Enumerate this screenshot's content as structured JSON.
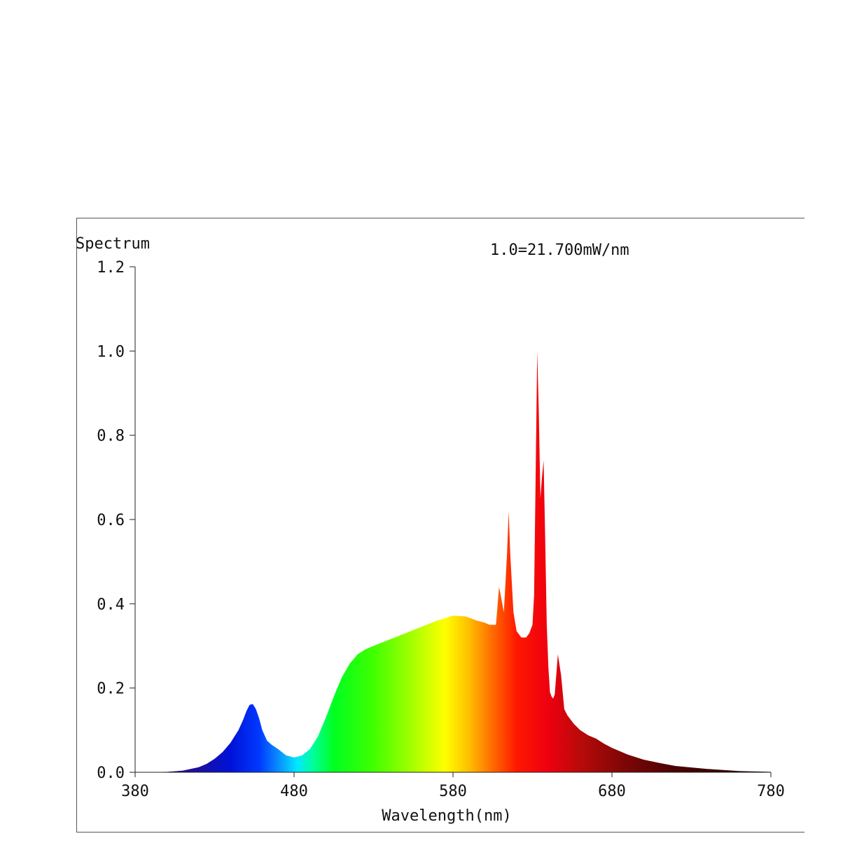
{
  "chart_data": {
    "type": "area",
    "title": "Spectrum",
    "annotation": "1.0=21.700mW/nm",
    "xlabel": "Wavelength(nm)",
    "ylabel": "",
    "xlim": [
      380,
      780
    ],
    "ylim": [
      0,
      1.2
    ],
    "x_ticks": [
      "380",
      "480",
      "580",
      "680",
      "780"
    ],
    "y_ticks": [
      "0.0",
      "0.2",
      "0.4",
      "0.6",
      "0.8",
      "1.0",
      "1.2"
    ],
    "x_tick_values": [
      380,
      480,
      580,
      680,
      780
    ],
    "y_tick_values": [
      0,
      0.2,
      0.4,
      0.6,
      0.8,
      1.0,
      1.2
    ],
    "fill": "visible-spectrum-gradient",
    "series": [
      {
        "x": [
          380,
          400,
          410,
          420,
          425,
          430,
          435,
          440,
          445,
          448,
          450,
          452,
          454,
          456,
          458,
          460,
          463,
          466,
          470,
          475,
          480,
          485,
          490,
          495,
          500,
          505,
          510,
          515,
          520,
          525,
          530,
          540,
          550,
          560,
          570,
          580,
          588,
          595,
          600,
          603,
          607,
          609,
          611,
          612,
          614,
          615,
          616,
          618,
          620,
          623,
          626,
          628,
          630,
          631,
          632,
          633,
          634,
          635,
          636,
          637,
          638,
          639,
          640,
          641,
          642,
          643,
          644,
          646,
          648,
          650,
          652,
          654,
          656,
          660,
          665,
          670,
          675,
          680,
          690,
          700,
          710,
          720,
          740,
          760,
          780
        ],
        "y": [
          0.0,
          0.001,
          0.004,
          0.012,
          0.02,
          0.032,
          0.048,
          0.07,
          0.1,
          0.125,
          0.145,
          0.16,
          0.162,
          0.15,
          0.128,
          0.1,
          0.075,
          0.065,
          0.055,
          0.04,
          0.035,
          0.04,
          0.055,
          0.085,
          0.13,
          0.18,
          0.225,
          0.258,
          0.28,
          0.292,
          0.3,
          0.315,
          0.33,
          0.345,
          0.36,
          0.372,
          0.37,
          0.36,
          0.355,
          0.35,
          0.35,
          0.44,
          0.4,
          0.38,
          0.52,
          0.62,
          0.52,
          0.38,
          0.335,
          0.32,
          0.32,
          0.33,
          0.35,
          0.42,
          0.7,
          1.0,
          0.85,
          0.65,
          0.7,
          0.74,
          0.55,
          0.35,
          0.25,
          0.19,
          0.18,
          0.175,
          0.185,
          0.28,
          0.23,
          0.15,
          0.135,
          0.125,
          0.115,
          0.1,
          0.088,
          0.08,
          0.068,
          0.058,
          0.042,
          0.03,
          0.022,
          0.015,
          0.008,
          0.003,
          0.001
        ]
      }
    ]
  }
}
